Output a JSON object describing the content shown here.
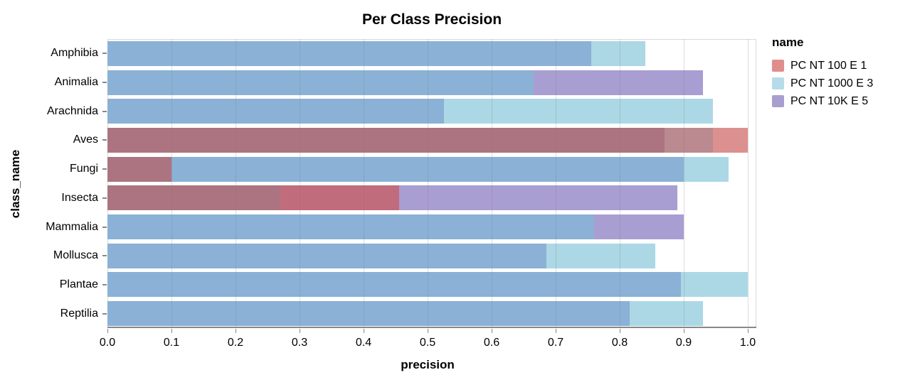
{
  "title": "Per Class Precision",
  "legend": {
    "title": "name",
    "entries": [
      {
        "label": "PC NT 100 E 1",
        "color": "#E08D8D"
      },
      {
        "label": "PC NT 1000 E 3",
        "color": "#B6DCE9"
      },
      {
        "label": "PC NT 10K E 5",
        "color": "#A89FD0"
      }
    ]
  },
  "chart_data": {
    "type": "bar",
    "orientation": "horizontal",
    "layering": "overlapping-translucent-bars",
    "title": "Per Class Precision",
    "xlabel": "precision",
    "ylabel": "class_name",
    "xlim": [
      0.0,
      1.0
    ],
    "x_ticks": [
      "0.0",
      "0.1",
      "0.2",
      "0.3",
      "0.4",
      "0.5",
      "0.6",
      "0.7",
      "0.8",
      "0.9",
      "1.0"
    ],
    "grid": true,
    "legend_position": "right",
    "categories": [
      "Amphibia",
      "Animalia",
      "Arachnida",
      "Aves",
      "Fungi",
      "Insecta",
      "Mammalia",
      "Mollusca",
      "Plantae",
      "Reptilia"
    ],
    "series": [
      {
        "name": "PC NT 100 E 1",
        "key": "r",
        "values": [
          null,
          null,
          null,
          1.0,
          0.1,
          0.455,
          null,
          null,
          null,
          null
        ]
      },
      {
        "name": "PC NT 1000 E 3",
        "key": "b",
        "values": [
          0.84,
          0.665,
          0.945,
          0.945,
          0.97,
          0.27,
          0.76,
          0.855,
          1.0,
          0.93
        ]
      },
      {
        "name": "PC NT 10K E 5",
        "key": "p",
        "values": [
          0.755,
          0.93,
          0.525,
          0.87,
          0.9,
          0.89,
          0.9,
          0.685,
          0.895,
          0.815
        ]
      }
    ],
    "overlap_colors": {
      "r": "#DC9090",
      "b": "#ACD8E6",
      "p": "#A99ED2",
      "rb": "#BB8990",
      "rp": "#C16C7C",
      "bp": "#8BB1D6",
      "rbp": "#AB7480"
    }
  }
}
